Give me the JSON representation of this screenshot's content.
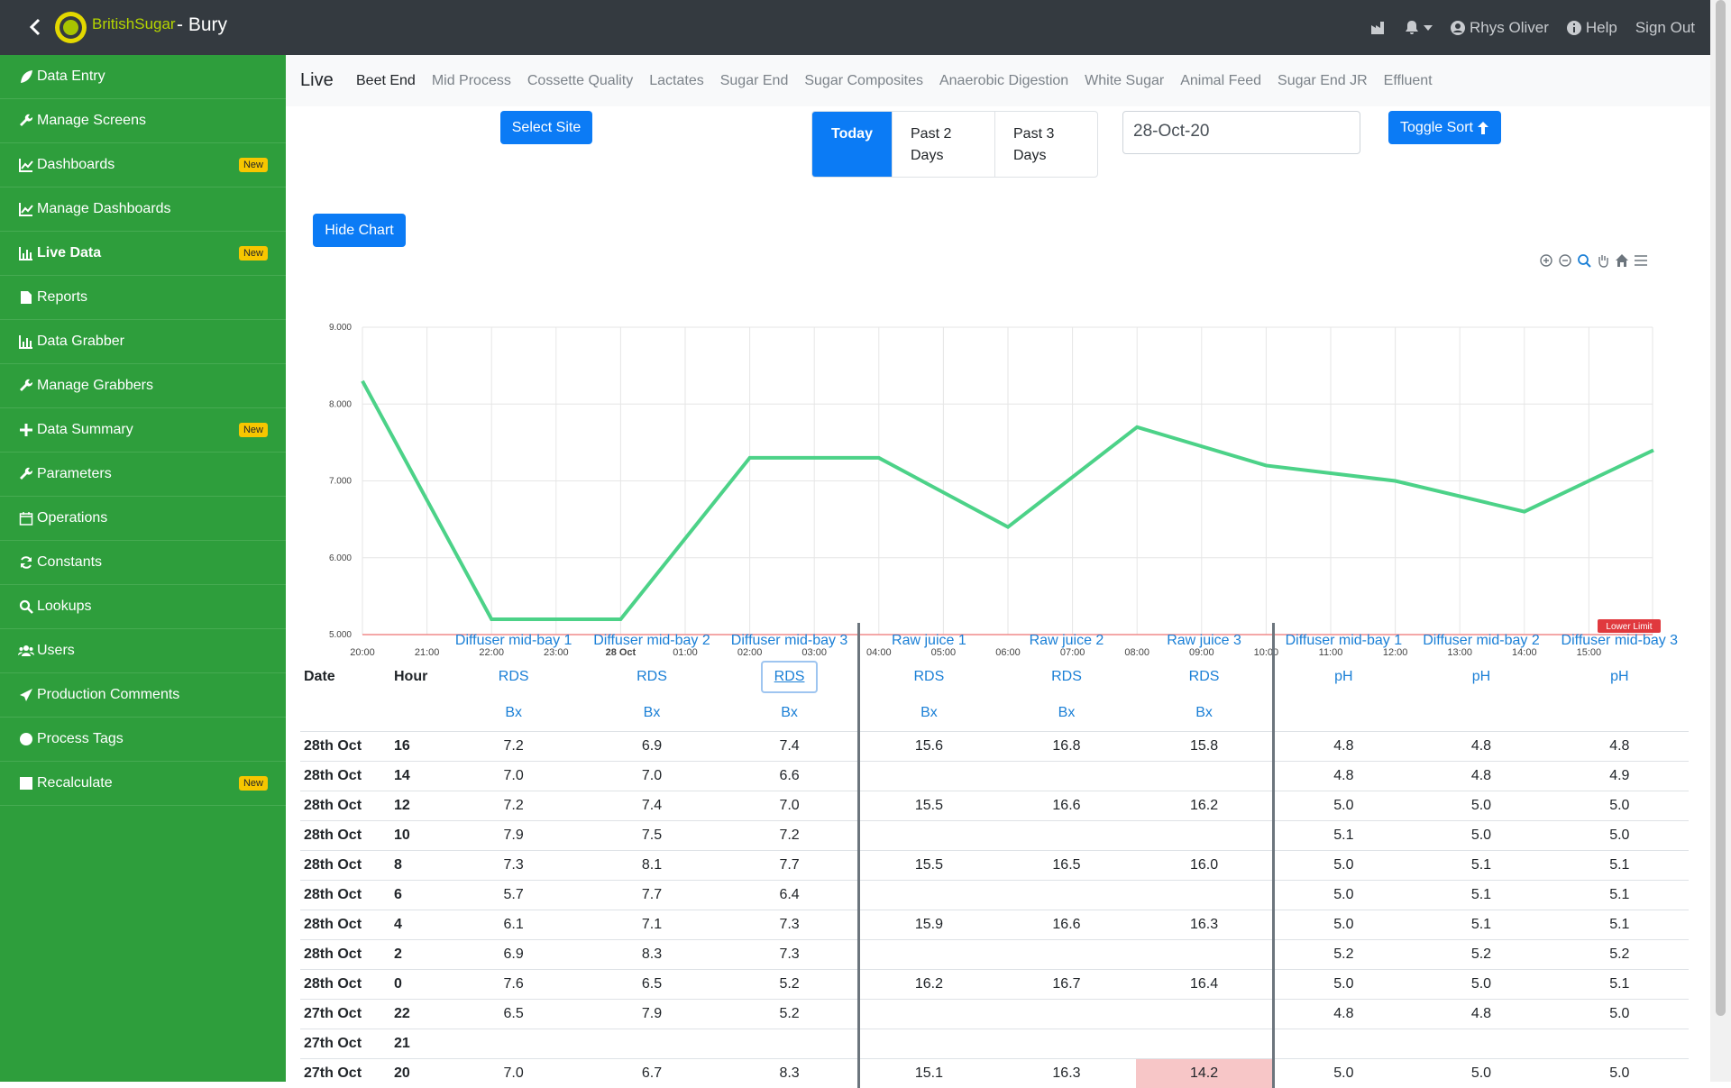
{
  "header": {
    "brand": "BritishSugar",
    "site": "- Bury",
    "user": "Rhys Oliver",
    "help": "Help",
    "signout": "Sign Out"
  },
  "sidebar": {
    "badge_new": "New",
    "items": [
      {
        "label": "Data Entry",
        "icon": "leaf-icon",
        "badge": false,
        "active": false
      },
      {
        "label": "Manage Screens",
        "icon": "wrench-icon",
        "badge": false,
        "active": false
      },
      {
        "label": "Dashboards",
        "icon": "line-chart-icon",
        "badge": true,
        "active": false
      },
      {
        "label": "Manage Dashboards",
        "icon": "line-chart-icon",
        "badge": false,
        "active": false
      },
      {
        "label": "Live Data",
        "icon": "bar-chart-icon",
        "badge": true,
        "active": true
      },
      {
        "label": "Reports",
        "icon": "file-icon",
        "badge": false,
        "active": false
      },
      {
        "label": "Data Grabber",
        "icon": "bar-chart-icon",
        "badge": false,
        "active": false
      },
      {
        "label": "Manage Grabbers",
        "icon": "wrench-icon",
        "badge": false,
        "active": false
      },
      {
        "label": "Data Summary",
        "icon": "plus-icon",
        "badge": true,
        "active": false
      },
      {
        "label": "Parameters",
        "icon": "wrench-icon",
        "badge": false,
        "active": false
      },
      {
        "label": "Operations",
        "icon": "calendar-icon",
        "badge": false,
        "active": false
      },
      {
        "label": "Constants",
        "icon": "refresh-icon",
        "badge": false,
        "active": false
      },
      {
        "label": "Lookups",
        "icon": "search-icon",
        "badge": false,
        "active": false
      },
      {
        "label": "Users",
        "icon": "users-icon",
        "badge": false,
        "active": false
      },
      {
        "label": "Production Comments",
        "icon": "send-icon",
        "badge": false,
        "active": false
      },
      {
        "label": "Process Tags",
        "icon": "circle-icon",
        "badge": false,
        "active": false
      },
      {
        "label": "Recalculate",
        "icon": "square-icon",
        "badge": true,
        "active": false
      }
    ]
  },
  "tabs": {
    "live": "Live",
    "items": [
      "Beet End",
      "Mid Process",
      "Cossette Quality",
      "Lactates",
      "Sugar End",
      "Sugar Composites",
      "Anaerobic Digestion",
      "White Sugar",
      "Animal Feed",
      "Sugar End JR",
      "Effluent"
    ],
    "active_index": 0
  },
  "controls": {
    "select_site": "Select Site",
    "range_today": "Today",
    "range_past2": "Past 2 Days",
    "range_past3": "Past 3 Days",
    "date_value": "28-Oct-20",
    "toggle_sort": "Toggle Sort",
    "hide_chart": "Hide Chart"
  },
  "chart_data": {
    "type": "line",
    "x": [
      "20:00",
      "21:00",
      "22:00",
      "23:00",
      "28 Oct",
      "01:00",
      "02:00",
      "03:00",
      "04:00",
      "05:00",
      "06:00",
      "07:00",
      "08:00",
      "09:00",
      "10:00",
      "11:00",
      "12:00",
      "13:00",
      "14:00",
      "15:00"
    ],
    "points": [
      {
        "x": "20:00",
        "y": 8.3
      },
      {
        "x": "22:00",
        "y": 5.2
      },
      {
        "x": "00:00",
        "y": 5.2
      },
      {
        "x": "02:00",
        "y": 7.3
      },
      {
        "x": "04:00",
        "y": 7.3
      },
      {
        "x": "06:00",
        "y": 6.4
      },
      {
        "x": "08:00",
        "y": 7.7
      },
      {
        "x": "10:00",
        "y": 7.2
      },
      {
        "x": "12:00",
        "y": 7.0
      },
      {
        "x": "14:00",
        "y": 6.6
      },
      {
        "x": "16:00",
        "y": 7.4
      }
    ],
    "y_ticks": [
      "9.000",
      "8.000",
      "7.000",
      "6.000",
      "5.000"
    ],
    "ylim": [
      5.0,
      9.0
    ],
    "lower_limit": 5.0,
    "lower_limit_label": "Lower Limit",
    "line_color": "#4cd288",
    "grid": true
  },
  "table": {
    "col_date": "Date",
    "col_hour": "Hour",
    "columns": [
      {
        "name": "Diffuser mid-bay 1",
        "measure": "RDS",
        "unit": "Bx"
      },
      {
        "name": "Diffuser mid-bay 2",
        "measure": "RDS",
        "unit": "Bx"
      },
      {
        "name": "Diffuser mid-bay 3",
        "measure": "RDS",
        "unit": "Bx"
      },
      {
        "name": "Raw juice 1",
        "measure": "RDS",
        "unit": "Bx"
      },
      {
        "name": "Raw juice 2",
        "measure": "RDS",
        "unit": "Bx"
      },
      {
        "name": "Raw juice 3",
        "measure": "RDS",
        "unit": "Bx"
      },
      {
        "name": "Diffuser mid-bay 1",
        "measure": "pH",
        "unit": ""
      },
      {
        "name": "Diffuser mid-bay 2",
        "measure": "pH",
        "unit": ""
      },
      {
        "name": "Diffuser mid-bay 3",
        "measure": "pH",
        "unit": ""
      }
    ],
    "rows": [
      {
        "date": "28th Oct",
        "hour": "16",
        "v": [
          "7.2",
          "6.9",
          "7.4",
          "15.6",
          "16.8",
          "15.8",
          "4.8",
          "4.8",
          "4.8"
        ]
      },
      {
        "date": "28th Oct",
        "hour": "14",
        "v": [
          "7.0",
          "7.0",
          "6.6",
          "",
          "",
          "",
          "4.8",
          "4.8",
          "4.9"
        ]
      },
      {
        "date": "28th Oct",
        "hour": "12",
        "v": [
          "7.2",
          "7.4",
          "7.0",
          "15.5",
          "16.6",
          "16.2",
          "5.0",
          "5.0",
          "5.0"
        ]
      },
      {
        "date": "28th Oct",
        "hour": "10",
        "v": [
          "7.9",
          "7.5",
          "7.2",
          "",
          "",
          "",
          "5.1",
          "5.0",
          "5.0"
        ]
      },
      {
        "date": "28th Oct",
        "hour": "8",
        "v": [
          "7.3",
          "8.1",
          "7.7",
          "15.5",
          "16.5",
          "16.0",
          "5.0",
          "5.1",
          "5.1"
        ]
      },
      {
        "date": "28th Oct",
        "hour": "6",
        "v": [
          "5.7",
          "7.7",
          "6.4",
          "",
          "",
          "",
          "5.0",
          "5.1",
          "5.1"
        ]
      },
      {
        "date": "28th Oct",
        "hour": "4",
        "v": [
          "6.1",
          "7.1",
          "7.3",
          "15.9",
          "16.6",
          "16.3",
          "5.0",
          "5.1",
          "5.1"
        ]
      },
      {
        "date": "28th Oct",
        "hour": "2",
        "v": [
          "6.9",
          "8.3",
          "7.3",
          "",
          "",
          "",
          "5.2",
          "5.2",
          "5.2"
        ]
      },
      {
        "date": "28th Oct",
        "hour": "0",
        "v": [
          "7.6",
          "6.5",
          "5.2",
          "16.2",
          "16.7",
          "16.4",
          "5.0",
          "5.0",
          "5.1"
        ]
      },
      {
        "date": "27th Oct",
        "hour": "22",
        "v": [
          "6.5",
          "7.9",
          "5.2",
          "",
          "",
          "",
          "4.8",
          "4.8",
          "5.0"
        ]
      },
      {
        "date": "27th Oct",
        "hour": "21",
        "v": [
          "",
          "",
          "",
          "",
          "",
          "",
          "",
          "",
          ""
        ]
      },
      {
        "date": "27th Oct",
        "hour": "20",
        "v": [
          "7.0",
          "6.7",
          "8.3",
          "15.1",
          "16.3",
          "14.2",
          "5.0",
          "5.0",
          "5.0"
        ],
        "alarm_col": 5
      }
    ]
  }
}
